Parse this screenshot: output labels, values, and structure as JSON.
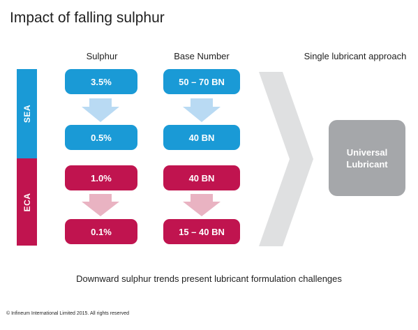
{
  "title": "Impact of falling sulphur",
  "columns": {
    "sulphur": "Sulphur",
    "base_number": "Base Number",
    "approach": "Single lubricant approach"
  },
  "zones": {
    "sea": {
      "label": "SEA",
      "color": "#1a9ad6",
      "arrow_color": "#b9daf3"
    },
    "eca": {
      "label": "ECA",
      "color": "#c0144f",
      "arrow_color": "#e9b3c2"
    }
  },
  "values": {
    "sea_sulphur_before": "3.5%",
    "sea_sulphur_after": "0.5%",
    "sea_bn_before": "50 – 70 BN",
    "sea_bn_after": "40 BN",
    "eca_sulphur_before": "1.0%",
    "eca_sulphur_after": "0.1%",
    "eca_bn_before": "40 BN",
    "eca_bn_after": "15 – 40 BN"
  },
  "result": {
    "line1": "Universal",
    "line2": "Lubricant",
    "color": "#a5a7aa"
  },
  "chevron_color": "#dfe0e1",
  "caption": "Downward sulphur trends present lubricant formulation challenges",
  "copyright": "© Infineum International Limited 2015. All rights reserved"
}
